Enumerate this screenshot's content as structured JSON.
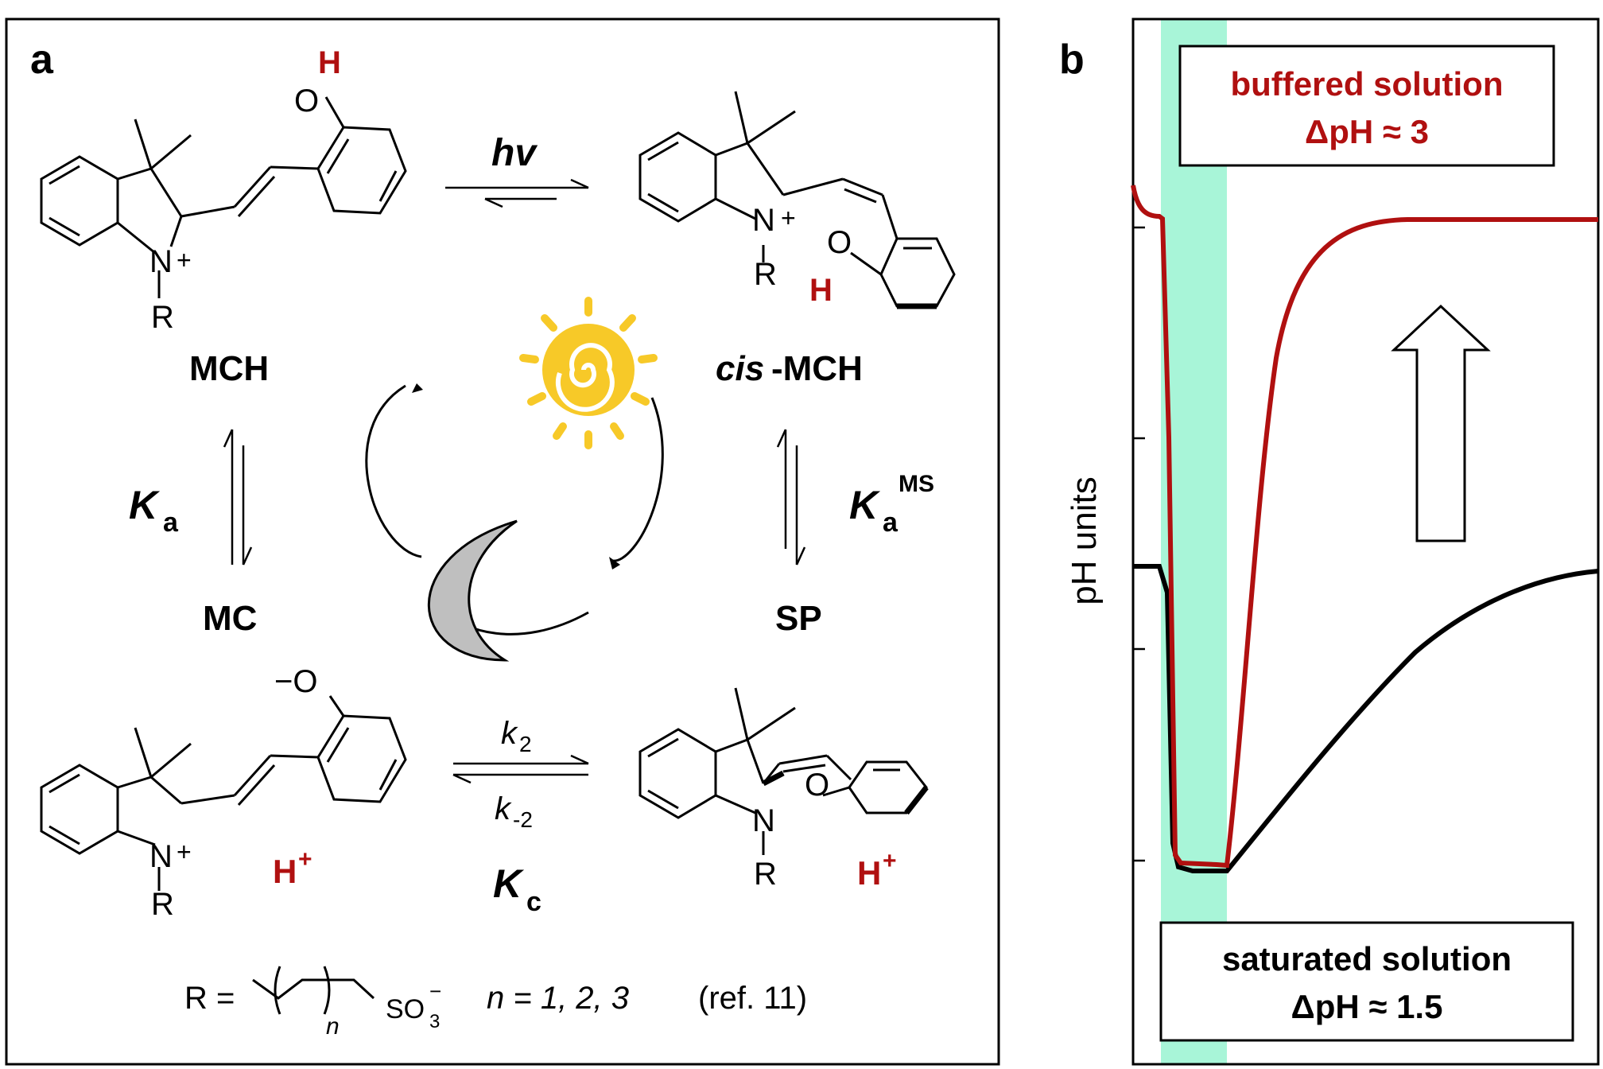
{
  "panel_a": {
    "letter": "a",
    "compounds": {
      "mch": "MCH",
      "cis_mch_prefix": "cis",
      "cis_mch_suffix": "-MCH",
      "mc": "MC",
      "sp": "SP"
    },
    "atoms": {
      "h": "H",
      "o": "O",
      "o_minus": "−O",
      "n": "N",
      "plus": "+",
      "r": "R",
      "h_plus": "H",
      "h_plus_sup": "+"
    },
    "equilibria": {
      "hv": "hv",
      "ka": "K",
      "ka_sub": "a",
      "ka_ms_sup": "MS",
      "k2": "k",
      "k2_sub": "2",
      "km2": "k",
      "km2_sub": "-2",
      "kc": "K",
      "kc_sub": "c"
    },
    "r_definition": {
      "prefix": "R =",
      "n_sub": "n",
      "so3": "SO",
      "so3_sub": "3",
      "so3_sup": "−",
      "n_values": "n = 1, 2, 3",
      "ref": "(ref. 11)"
    }
  },
  "panel_b": {
    "letter": "b",
    "ylabel": "pH units",
    "box_buffered_line1": "buffered solution",
    "box_buffered_line2": "ΔpH ≈ 3",
    "box_saturated_line1": "saturated solution",
    "box_saturated_line2": "ΔpH ≈ 1.5"
  },
  "colors": {
    "red": "#b01010",
    "black": "#000000",
    "highlight": "#a8f5d8",
    "sun": "#f7c928",
    "moon": "#bfbfbf"
  }
}
